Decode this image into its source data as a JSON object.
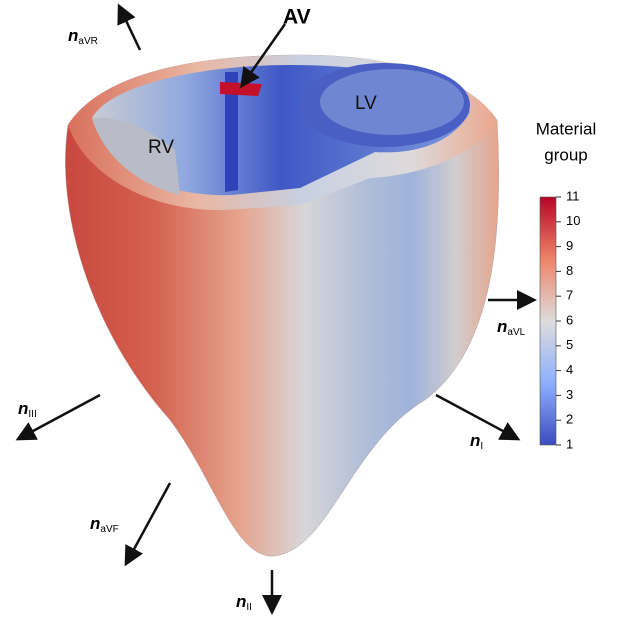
{
  "labels": {
    "av": "AV",
    "lv": "LV",
    "rv": "RV"
  },
  "colorbar": {
    "title_lines": [
      "Material",
      "group"
    ],
    "range": [
      1,
      11
    ],
    "ticks": [
      1,
      2,
      3,
      4,
      5,
      6,
      7,
      8,
      9,
      10,
      11
    ]
  },
  "vectors": [
    {
      "symbol": "n",
      "subscript": "aVR"
    },
    {
      "symbol": "n",
      "subscript": "aVL"
    },
    {
      "symbol": "n",
      "subscript": "I"
    },
    {
      "symbol": "n",
      "subscript": "II"
    },
    {
      "symbol": "n",
      "subscript": "III"
    },
    {
      "symbol": "n",
      "subscript": "aVF"
    }
  ]
}
